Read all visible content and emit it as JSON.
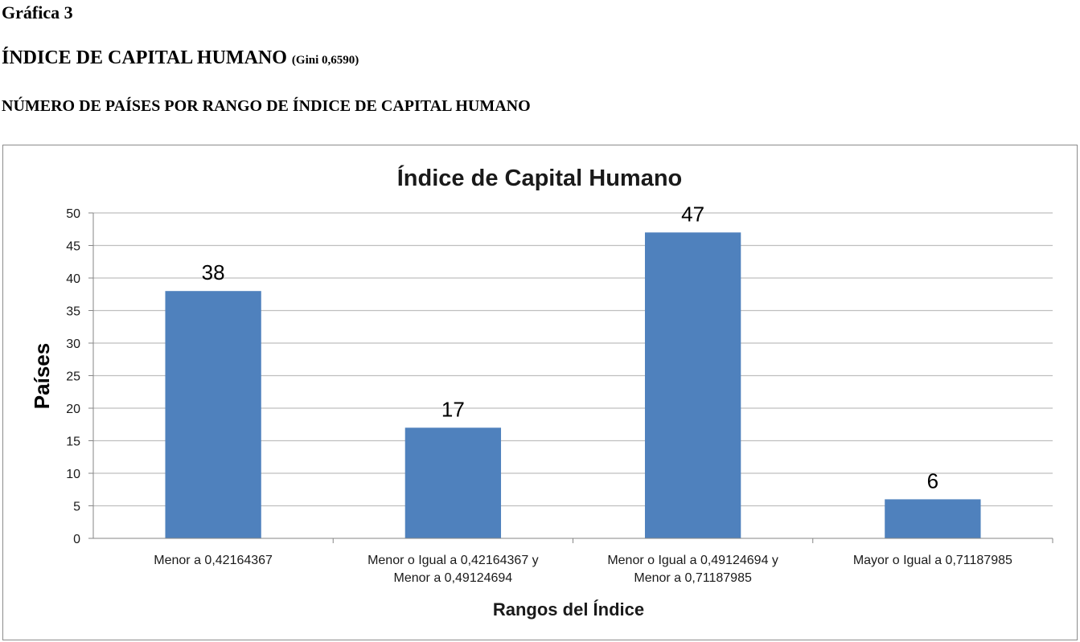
{
  "document": {
    "label": "Gráfica 3",
    "heading": "ÍNDICE DE CAPITAL HUMANO",
    "heading_note": "(Gini 0,6590)",
    "subheading": "NÚMERO DE PAÍSES POR RANGO DE ÍNDICE DE CAPITAL HUMANO"
  },
  "chart_data": {
    "type": "bar",
    "title": "Índice de Capital Humano",
    "xlabel": "Rangos del Índice",
    "ylabel": "Países",
    "categories": [
      [
        "Menor a 0,42164367"
      ],
      [
        "Menor o Igual a 0,42164367 y",
        "Menor a 0,49124694"
      ],
      [
        "Menor o Igual a 0,49124694 y",
        "Menor a 0,71187985"
      ],
      [
        "Mayor o Igual a 0,71187985"
      ]
    ],
    "values": [
      38,
      17,
      47,
      6
    ],
    "data_labels": [
      "38",
      "17",
      "47",
      "6"
    ],
    "ylim": [
      0,
      50
    ],
    "yticks": [
      "0",
      "5",
      "10",
      "15",
      "20",
      "25",
      "30",
      "35",
      "40",
      "45",
      "50"
    ],
    "grid": true,
    "legend": "none",
    "colors": {
      "bar": "#4f81bd",
      "grid": "#bfbfbf",
      "axis": "#868686"
    }
  }
}
